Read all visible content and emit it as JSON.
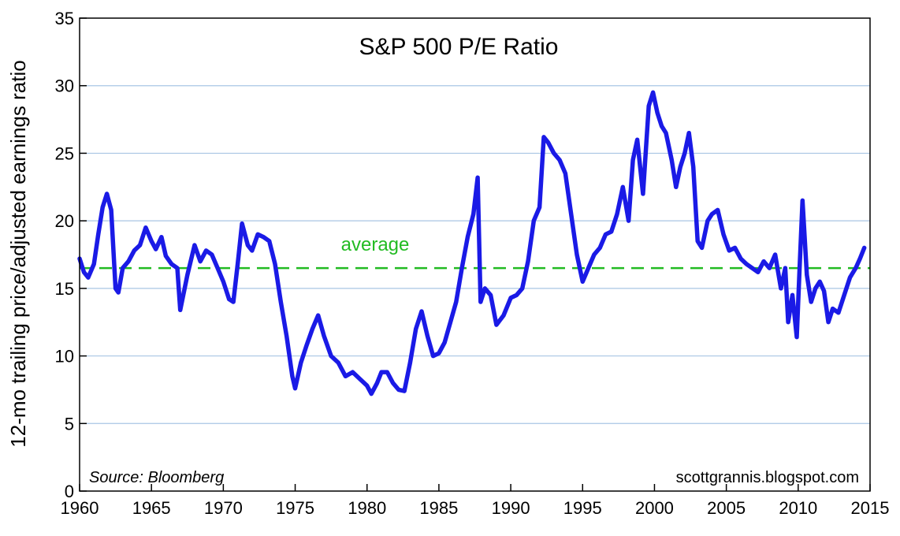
{
  "chart_data": {
    "type": "line",
    "title": "S&P 500 P/E Ratio",
    "ylabel": "12-mo trailing price/adjusted earnings ratio",
    "xlabel": "",
    "xlim": [
      1960,
      2015
    ],
    "ylim": [
      0,
      35
    ],
    "x_ticks": [
      "1960",
      "1965",
      "1970",
      "1975",
      "1980",
      "1985",
      "1990",
      "1995",
      "2000",
      "2005",
      "2010",
      "2015"
    ],
    "y_ticks": [
      "0",
      "5",
      "10",
      "15",
      "20",
      "25",
      "30",
      "35"
    ],
    "grid": "horizontal",
    "series": [
      {
        "name": "",
        "color": "#1a1ae6",
        "x": [
          1960.0,
          1960.3,
          1960.6,
          1961.0,
          1961.3,
          1961.6,
          1961.9,
          1962.2,
          1962.5,
          1962.7,
          1963.0,
          1963.4,
          1963.8,
          1964.2,
          1964.6,
          1965.0,
          1965.3,
          1965.7,
          1966.0,
          1966.4,
          1966.8,
          1967.0,
          1967.5,
          1968.0,
          1968.4,
          1968.8,
          1969.2,
          1969.6,
          1970.0,
          1970.4,
          1970.7,
          1971.0,
          1971.3,
          1971.7,
          1972.0,
          1972.4,
          1972.8,
          1973.2,
          1973.6,
          1974.0,
          1974.4,
          1974.8,
          1975.0,
          1975.4,
          1975.8,
          1976.2,
          1976.6,
          1977.0,
          1977.5,
          1978.0,
          1978.5,
          1979.0,
          1979.5,
          1980.0,
          1980.3,
          1980.7,
          1981.0,
          1981.4,
          1981.8,
          1982.2,
          1982.6,
          1983.0,
          1983.4,
          1983.8,
          1984.2,
          1984.6,
          1985.0,
          1985.4,
          1985.8,
          1986.2,
          1986.6,
          1987.0,
          1987.4,
          1987.7,
          1987.9,
          1988.2,
          1988.6,
          1989.0,
          1989.5,
          1990.0,
          1990.4,
          1990.8,
          1991.2,
          1991.6,
          1992.0,
          1992.3,
          1992.6,
          1993.0,
          1993.4,
          1993.8,
          1994.2,
          1994.6,
          1995.0,
          1995.4,
          1995.8,
          1996.2,
          1996.6,
          1997.0,
          1997.4,
          1997.8,
          1998.2,
          1998.5,
          1998.8,
          1999.2,
          1999.6,
          1999.9,
          2000.2,
          2000.5,
          2000.8,
          2001.2,
          2001.5,
          2001.8,
          2002.1,
          2002.4,
          2002.7,
          2003.0,
          2003.3,
          2003.7,
          2004.0,
          2004.4,
          2004.8,
          2005.2,
          2005.6,
          2006.0,
          2006.4,
          2006.8,
          2007.2,
          2007.6,
          2008.0,
          2008.4,
          2008.8,
          2009.1,
          2009.3,
          2009.6,
          2009.9,
          2010.1,
          2010.3,
          2010.6,
          2010.9,
          2011.2,
          2011.5,
          2011.8,
          2012.1,
          2012.4,
          2012.8,
          2013.2,
          2013.6,
          2014.0,
          2014.3,
          2014.6
        ],
        "values": [
          17.2,
          16.2,
          15.8,
          16.8,
          19.0,
          21.0,
          22.0,
          20.8,
          15.0,
          14.7,
          16.5,
          17.0,
          17.8,
          18.2,
          19.5,
          18.5,
          17.9,
          18.8,
          17.4,
          16.8,
          16.5,
          13.4,
          16.0,
          18.2,
          17.0,
          17.8,
          17.5,
          16.5,
          15.5,
          14.2,
          14.0,
          16.8,
          19.8,
          18.2,
          17.8,
          19.0,
          18.8,
          18.5,
          16.8,
          14.0,
          11.5,
          8.5,
          7.6,
          9.5,
          10.8,
          12.0,
          13.0,
          11.5,
          10.0,
          9.5,
          8.5,
          8.8,
          8.3,
          7.8,
          7.2,
          8.0,
          8.8,
          8.8,
          8.0,
          7.5,
          7.4,
          9.5,
          12.0,
          13.3,
          11.5,
          10.0,
          10.2,
          11.0,
          12.5,
          14.0,
          16.5,
          18.8,
          20.5,
          23.2,
          14.0,
          15.0,
          14.5,
          12.3,
          13.0,
          14.3,
          14.5,
          15.0,
          17.0,
          20.0,
          21.0,
          26.2,
          25.8,
          25.0,
          24.5,
          23.5,
          20.5,
          17.5,
          15.5,
          16.5,
          17.5,
          18.0,
          19.0,
          19.2,
          20.5,
          22.5,
          20.0,
          24.5,
          26.0,
          22.0,
          28.5,
          29.5,
          28.0,
          27.0,
          26.5,
          24.5,
          22.5,
          24.0,
          25.0,
          26.5,
          24.0,
          18.5,
          18.0,
          20.0,
          20.5,
          20.8,
          19.0,
          17.8,
          18.0,
          17.2,
          16.8,
          16.5,
          16.2,
          17.0,
          16.5,
          17.5,
          15.0,
          16.5,
          12.5,
          14.5,
          11.4,
          16.5,
          21.5,
          16.0,
          14.0,
          15.0,
          15.5,
          14.8,
          12.5,
          13.5,
          13.2,
          14.5,
          15.8,
          16.5,
          17.2,
          18.0
        ]
      }
    ],
    "reference_line": {
      "label": "average",
      "value": 16.5,
      "color": "#22bb22"
    },
    "annotations": [
      {
        "text": "Source: Bloomberg",
        "position": "bottom-left"
      },
      {
        "text": "scottgrannis.blogspot.com",
        "position": "bottom-right"
      }
    ]
  }
}
